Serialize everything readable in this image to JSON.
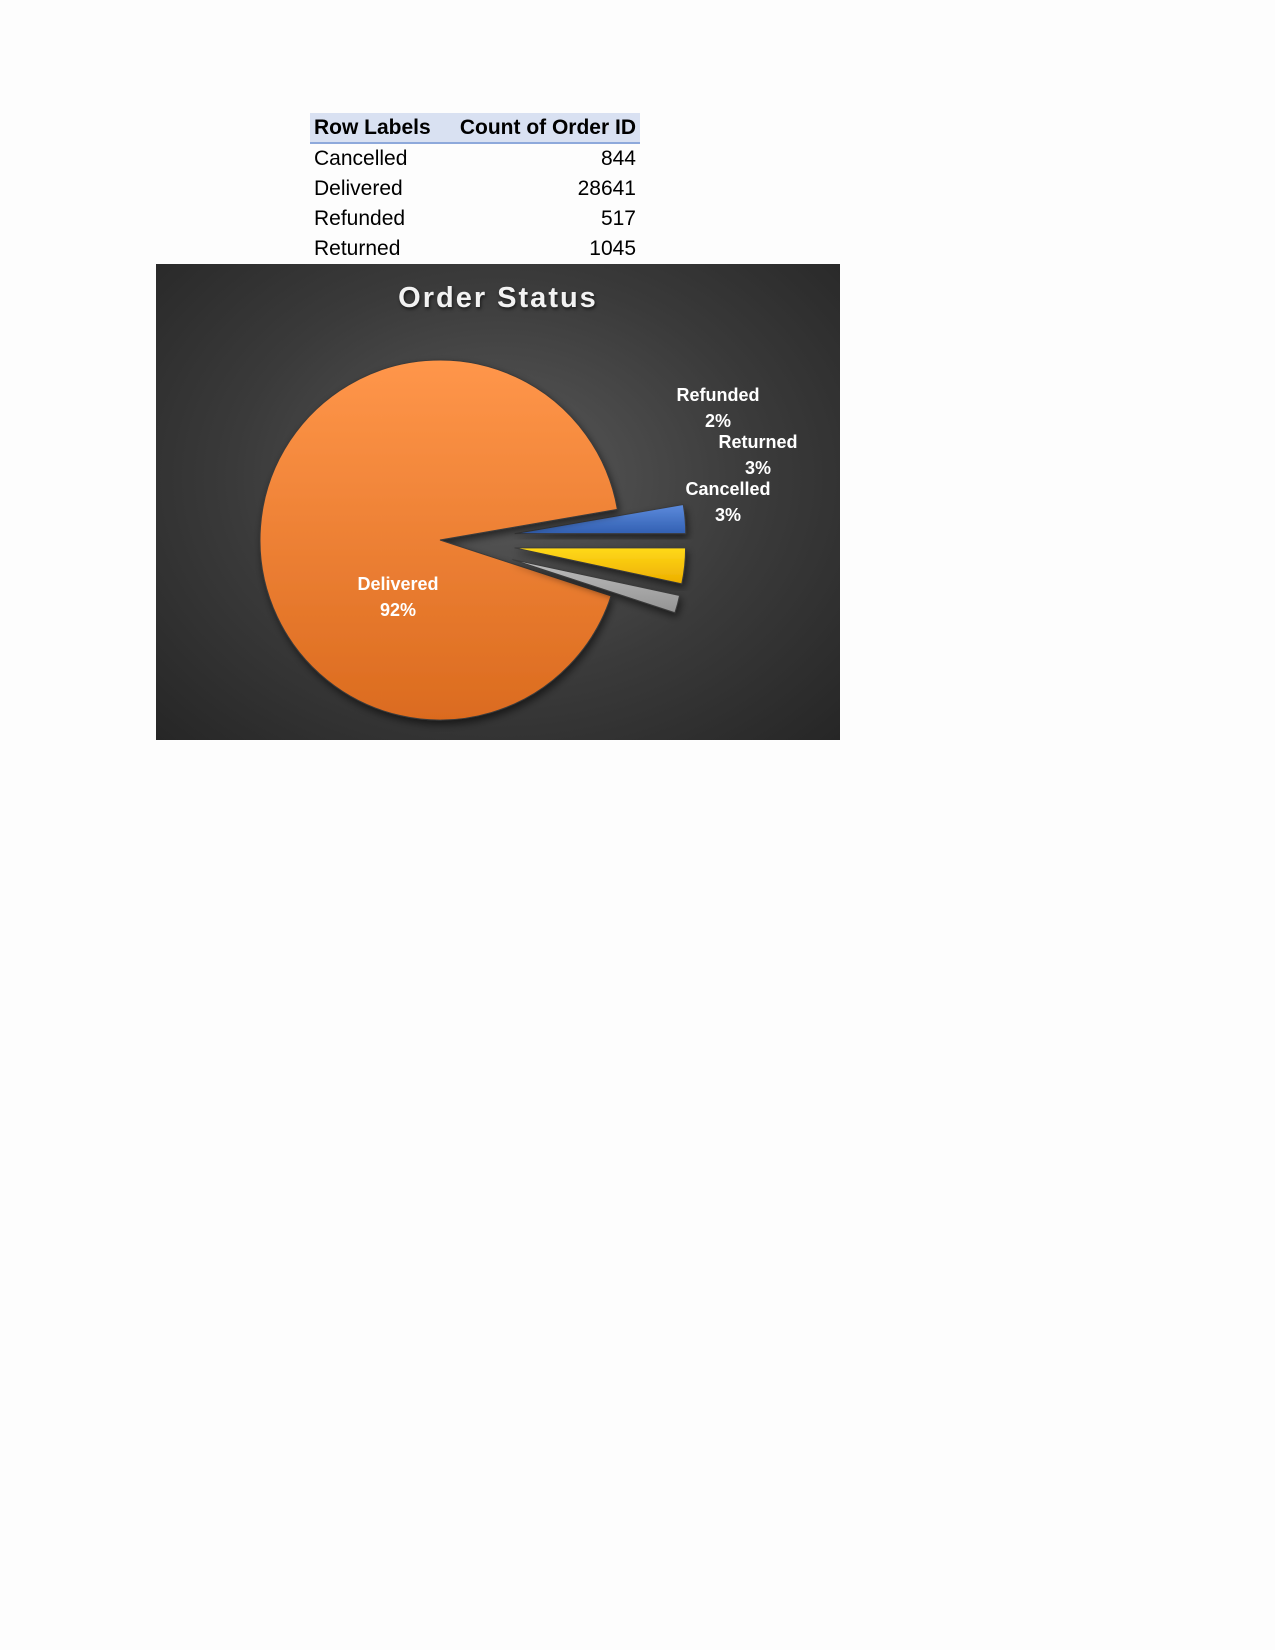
{
  "pivot": {
    "headers": [
      "Row Labels",
      "Count of Order ID"
    ],
    "rows": [
      {
        "label": "Cancelled",
        "value": "844"
      },
      {
        "label": "Delivered",
        "value": "28641"
      },
      {
        "label": "Refunded",
        "value": "517"
      },
      {
        "label": "Returned",
        "value": "1045"
      }
    ]
  },
  "chart_data": {
    "type": "pie",
    "title": "Order Status",
    "categories": [
      "Cancelled",
      "Delivered",
      "Refunded",
      "Returned"
    ],
    "values": [
      844,
      28641,
      517,
      1045
    ],
    "percent_labels": [
      "3%",
      "92%",
      "2%",
      "3%"
    ],
    "colors": [
      "#4472c4",
      "#ed7d31",
      "#a5a5a5",
      "#ffc000"
    ],
    "exploded": [
      "Cancelled",
      "Refunded",
      "Returned"
    ],
    "legend": "none"
  }
}
